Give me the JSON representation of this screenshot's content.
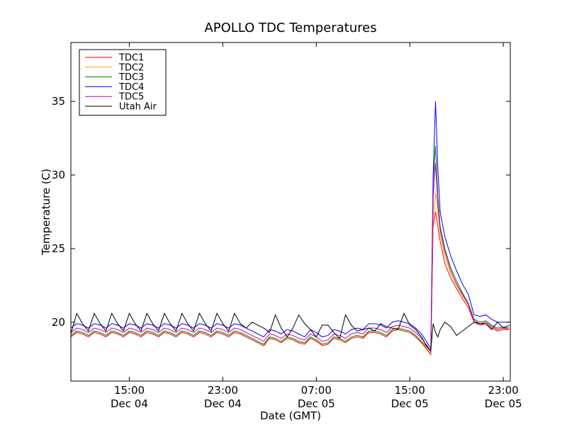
{
  "chart_data": {
    "type": "line",
    "title": "APOLLO TDC Temperatures",
    "xlabel": "Date (GMT)",
    "ylabel": "Temperature (C)",
    "xlim": [
      10,
      47.6
    ],
    "ylim": [
      16,
      39
    ],
    "legend_location": "top-left",
    "y_ticks": [
      {
        "value": 20,
        "label": "20"
      },
      {
        "value": 25,
        "label": "25"
      },
      {
        "value": 30,
        "label": "30"
      },
      {
        "value": 35,
        "label": "35"
      }
    ],
    "x_ticks": [
      {
        "value": 15,
        "time": "15:00",
        "date": "Dec 04"
      },
      {
        "value": 23,
        "time": "23:00",
        "date": "Dec 04"
      },
      {
        "value": 31,
        "time": "07:00",
        "date": "Dec 05"
      },
      {
        "value": 39,
        "time": "15:00",
        "date": "Dec 05"
      },
      {
        "value": 47,
        "time": "23:00",
        "date": "Dec 05"
      }
    ],
    "x": [
      10,
      10.5,
      11,
      11.5,
      12,
      12.5,
      13,
      13.5,
      14,
      14.5,
      15,
      15.5,
      16,
      16.5,
      17,
      17.5,
      18,
      18.5,
      19,
      19.5,
      20,
      20.5,
      21,
      21.5,
      22,
      22.5,
      23,
      23.5,
      24,
      24.5,
      25,
      25.5,
      26,
      26.5,
      27,
      27.5,
      28,
      28.5,
      29,
      29.5,
      30,
      30.5,
      31,
      31.5,
      32,
      32.5,
      33,
      33.5,
      34,
      34.5,
      35,
      35.5,
      36,
      36.5,
      37,
      37.5,
      38,
      38.5,
      39,
      39.5,
      40,
      40.5,
      40.8,
      41,
      41.2,
      41.4,
      41.6,
      42,
      42.5,
      43,
      43.5,
      44,
      44.5,
      45,
      45.5,
      46,
      46.5,
      47,
      47.5
    ],
    "series": [
      {
        "name": "TDC1",
        "color": "#ff0000",
        "values": [
          19.0,
          19.3,
          19.2,
          19.0,
          19.3,
          19.2,
          19.0,
          19.3,
          19.2,
          19.0,
          19.3,
          19.2,
          19.0,
          19.3,
          19.2,
          19.0,
          19.3,
          19.2,
          19.0,
          19.3,
          19.2,
          19.0,
          19.3,
          19.2,
          19.0,
          19.3,
          19.2,
          19.0,
          19.3,
          19.2,
          19.0,
          18.8,
          18.6,
          18.4,
          18.9,
          18.8,
          18.6,
          18.9,
          18.8,
          18.6,
          18.5,
          18.9,
          18.7,
          18.4,
          18.5,
          18.9,
          18.8,
          18.6,
          18.9,
          19.0,
          18.9,
          19.3,
          19.3,
          19.2,
          19.0,
          19.4,
          19.5,
          19.4,
          19.3,
          19.0,
          18.6,
          18.1,
          17.8,
          26.5,
          27.5,
          26.5,
          25.5,
          24.0,
          23.0,
          22.3,
          21.6,
          21.0,
          20.0,
          19.8,
          19.9,
          19.6,
          19.4,
          19.5,
          19.5
        ]
      },
      {
        "name": "TDC2",
        "color": "#ffa500",
        "values": [
          19.1,
          19.4,
          19.3,
          19.1,
          19.4,
          19.3,
          19.1,
          19.4,
          19.3,
          19.1,
          19.4,
          19.3,
          19.1,
          19.4,
          19.3,
          19.1,
          19.4,
          19.3,
          19.1,
          19.4,
          19.3,
          19.1,
          19.4,
          19.3,
          19.1,
          19.4,
          19.3,
          19.1,
          19.4,
          19.3,
          19.1,
          18.9,
          18.7,
          18.5,
          19.0,
          18.9,
          18.7,
          19.0,
          18.9,
          18.7,
          18.6,
          19.0,
          18.8,
          18.5,
          18.6,
          19.0,
          18.9,
          18.7,
          19.0,
          19.1,
          19.0,
          19.4,
          19.4,
          19.3,
          19.1,
          19.5,
          19.6,
          19.5,
          19.4,
          19.1,
          18.7,
          18.2,
          17.9,
          27.0,
          28.8,
          27.5,
          26.0,
          24.5,
          23.3,
          22.5,
          21.8,
          21.2,
          20.1,
          19.9,
          20.0,
          19.7,
          19.5,
          19.6,
          19.6
        ]
      },
      {
        "name": "TDC3",
        "color": "#008000",
        "values": [
          19.1,
          19.4,
          19.3,
          19.1,
          19.4,
          19.3,
          19.1,
          19.4,
          19.3,
          19.1,
          19.4,
          19.3,
          19.1,
          19.4,
          19.3,
          19.1,
          19.4,
          19.3,
          19.1,
          19.4,
          19.3,
          19.1,
          19.4,
          19.3,
          19.1,
          19.4,
          19.3,
          19.1,
          19.4,
          19.3,
          19.1,
          18.9,
          18.7,
          18.5,
          19.0,
          18.9,
          18.7,
          19.0,
          18.9,
          18.7,
          18.6,
          19.0,
          18.8,
          18.5,
          18.6,
          19.0,
          18.9,
          18.7,
          19.0,
          19.1,
          19.0,
          19.4,
          19.4,
          19.3,
          19.1,
          19.5,
          19.6,
          19.5,
          19.4,
          19.1,
          18.7,
          18.3,
          18.0,
          29.5,
          32.0,
          28.5,
          26.5,
          25.0,
          23.7,
          22.8,
          22.0,
          21.3,
          20.2,
          20.0,
          20.1,
          19.8,
          19.6,
          19.7,
          19.6
        ]
      },
      {
        "name": "TDC4",
        "color": "#0000ff",
        "values": [
          19.6,
          19.9,
          19.8,
          19.6,
          19.9,
          19.8,
          19.6,
          19.9,
          19.8,
          19.6,
          19.9,
          19.8,
          19.6,
          19.9,
          19.8,
          19.6,
          19.9,
          19.8,
          19.6,
          19.9,
          19.8,
          19.6,
          19.9,
          19.8,
          19.6,
          19.9,
          19.8,
          19.6,
          19.9,
          19.8,
          19.6,
          19.4,
          19.2,
          19.0,
          19.5,
          19.4,
          19.2,
          19.5,
          19.4,
          19.2,
          19.0,
          19.5,
          19.3,
          19.0,
          19.1,
          19.5,
          19.4,
          19.2,
          19.5,
          19.6,
          19.5,
          19.9,
          19.9,
          19.8,
          19.6,
          20.0,
          20.1,
          20.0,
          19.9,
          19.6,
          19.2,
          18.6,
          18.2,
          30.0,
          35.0,
          30.5,
          27.5,
          25.8,
          24.5,
          23.5,
          22.6,
          21.9,
          20.5,
          20.4,
          20.5,
          20.2,
          20.0,
          20.0,
          20.0
        ]
      },
      {
        "name": "TDC5",
        "color": "#bf00bf",
        "values": [
          19.3,
          19.6,
          19.5,
          19.3,
          19.6,
          19.5,
          19.3,
          19.6,
          19.5,
          19.3,
          19.6,
          19.5,
          19.3,
          19.6,
          19.5,
          19.3,
          19.6,
          19.5,
          19.3,
          19.6,
          19.5,
          19.3,
          19.6,
          19.5,
          19.3,
          19.6,
          19.5,
          19.3,
          19.6,
          19.5,
          19.3,
          19.1,
          18.9,
          18.7,
          19.2,
          19.1,
          18.9,
          19.2,
          19.1,
          18.9,
          18.8,
          19.2,
          19.0,
          18.7,
          18.8,
          19.2,
          19.1,
          18.9,
          19.2,
          19.3,
          19.2,
          19.6,
          19.6,
          19.5,
          19.3,
          19.7,
          19.8,
          19.7,
          19.6,
          19.3,
          18.9,
          18.4,
          18.0,
          28.5,
          30.8,
          28.0,
          26.3,
          24.8,
          23.5,
          22.6,
          21.9,
          21.2,
          20.1,
          19.9,
          20.0,
          19.7,
          19.5,
          19.6,
          19.5
        ]
      },
      {
        "name": "Utah Air",
        "color": "#000000",
        "values": [
          19.2,
          20.6,
          19.9,
          19.4,
          20.6,
          19.9,
          19.4,
          20.6,
          19.9,
          19.4,
          20.6,
          19.9,
          19.4,
          20.6,
          19.9,
          19.4,
          20.6,
          19.9,
          19.4,
          20.6,
          19.9,
          19.4,
          20.6,
          19.9,
          19.4,
          20.6,
          19.9,
          19.4,
          20.6,
          19.9,
          19.6,
          20.0,
          19.8,
          19.6,
          19.3,
          20.5,
          19.6,
          19.0,
          19.6,
          20.5,
          19.9,
          19.5,
          19.0,
          19.8,
          19.8,
          19.3,
          18.9,
          20.5,
          19.8,
          19.4,
          19.5,
          19.6,
          19.4,
          19.9,
          19.7,
          19.6,
          19.5,
          20.6,
          19.8,
          19.5,
          19.0,
          18.3,
          18.1,
          19.9,
          19.3,
          19.0,
          19.5,
          20.0,
          19.7,
          19.1,
          19.4,
          19.7,
          20.0,
          19.9,
          19.9,
          19.5,
          20.0,
          19.6,
          19.8
        ]
      }
    ]
  }
}
